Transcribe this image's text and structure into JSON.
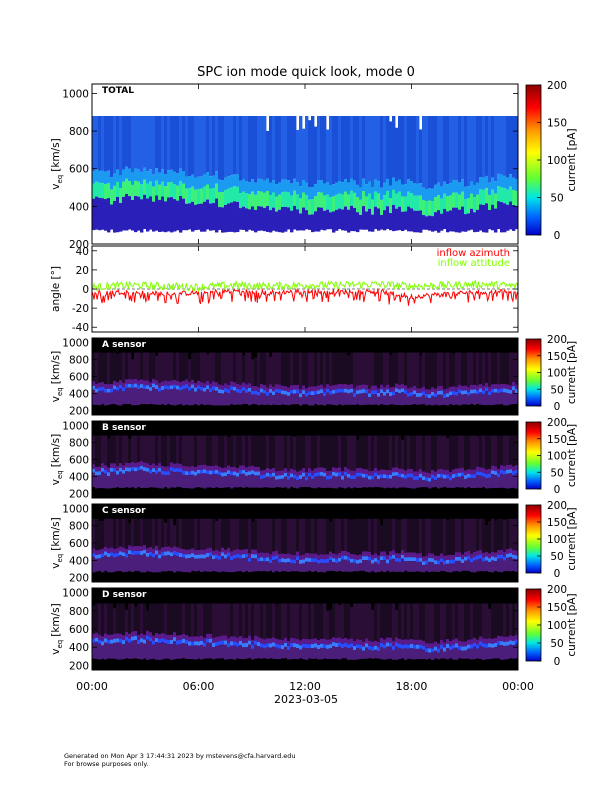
{
  "title": "SPC ion mode quick look, mode 0",
  "footer": {
    "line1": "Generated on Mon Apr  3 17:44:31 2023 by mstevens@cfa.harvard.edu",
    "line2": "For browse purposes only."
  },
  "time_axis": {
    "ticks": [
      "00:00",
      "06:00",
      "12:00",
      "18:00",
      "00:00"
    ],
    "date_label": "2023-03-05",
    "range_hours": [
      0,
      24
    ]
  },
  "colors": {
    "azimuth": "#ff0000",
    "attitude": "#80ff00"
  },
  "chart_data": [
    {
      "id": "total",
      "type": "heatmap",
      "panel_label": "TOTAL",
      "ylabel_main": "v",
      "ylabel_sub": "eq",
      "ylabel_unit": "[km/s]",
      "ylim": [
        200,
        1050
      ],
      "yticks": [
        200,
        400,
        600,
        800,
        1000
      ],
      "colorbar": {
        "label": "current [pA]",
        "range": [
          0,
          200
        ],
        "ticks": [
          0,
          50,
          100,
          150,
          200
        ]
      },
      "background": "#ffffff",
      "coverage_kms": [
        280,
        880
      ],
      "peak_speed_kms": [
        {
          "t": 0,
          "v": 460
        },
        {
          "t": 1,
          "v": 450
        },
        {
          "t": 2,
          "v": 470
        },
        {
          "t": 3,
          "v": 480
        },
        {
          "t": 4,
          "v": 460
        },
        {
          "t": 5,
          "v": 470
        },
        {
          "t": 6,
          "v": 450
        },
        {
          "t": 8,
          "v": 440
        },
        {
          "t": 10,
          "v": 410
        },
        {
          "t": 12,
          "v": 400
        },
        {
          "t": 14,
          "v": 410
        },
        {
          "t": 16,
          "v": 400
        },
        {
          "t": 17.5,
          "v": 420
        },
        {
          "t": 18,
          "v": 400
        },
        {
          "t": 19,
          "v": 380
        },
        {
          "t": 20,
          "v": 390
        },
        {
          "t": 22,
          "v": 420
        },
        {
          "t": 23,
          "v": 430
        },
        {
          "t": 24,
          "v": 440
        }
      ]
    },
    {
      "id": "angles",
      "type": "line",
      "ylabel": "angle [°]",
      "ylim": [
        -45,
        45
      ],
      "yticks": [
        -40,
        -20,
        0,
        20,
        40
      ],
      "series": [
        {
          "name": "inflow azimuth",
          "color": "#ff0000",
          "values": [
            {
              "t": 0,
              "y": -4
            },
            {
              "t": 2,
              "y": -3
            },
            {
              "t": 4,
              "y": -5
            },
            {
              "t": 6,
              "y": -4
            },
            {
              "t": 8,
              "y": -2
            },
            {
              "t": 10,
              "y": -4
            },
            {
              "t": 12,
              "y": -2
            },
            {
              "t": 14,
              "y": -3
            },
            {
              "t": 16,
              "y": -2
            },
            {
              "t": 18,
              "y": -8
            },
            {
              "t": 20,
              "y": -5
            },
            {
              "t": 22,
              "y": -3
            },
            {
              "t": 24,
              "y": -2
            }
          ]
        },
        {
          "name": "inflow attitude",
          "color": "#80ff00",
          "values": [
            {
              "t": 0,
              "y": 2
            },
            {
              "t": 2,
              "y": 4
            },
            {
              "t": 4,
              "y": 3
            },
            {
              "t": 6,
              "y": 2
            },
            {
              "t": 8,
              "y": 4
            },
            {
              "t": 10,
              "y": 3
            },
            {
              "t": 12,
              "y": 4
            },
            {
              "t": 14,
              "y": 4
            },
            {
              "t": 16,
              "y": 5
            },
            {
              "t": 18,
              "y": 3
            },
            {
              "t": 20,
              "y": 4
            },
            {
              "t": 22,
              "y": 5
            },
            {
              "t": 24,
              "y": 3
            }
          ]
        }
      ]
    },
    {
      "id": "a_sensor",
      "type": "heatmap",
      "panel_label": "A sensor",
      "ylabel_main": "v",
      "ylabel_sub": "eq",
      "ylabel_unit": "[km/s]",
      "ylim": [
        150,
        1050
      ],
      "yticks": [
        200,
        400,
        600,
        800,
        1000
      ],
      "colorbar": {
        "label": "current [pA]",
        "range": [
          0,
          200
        ],
        "ticks": [
          0,
          50,
          100,
          150,
          200
        ]
      },
      "background": "#000000",
      "coverage_kms": [
        280,
        880
      ]
    },
    {
      "id": "b_sensor",
      "type": "heatmap",
      "panel_label": "B sensor",
      "ylabel_main": "v",
      "ylabel_sub": "eq",
      "ylabel_unit": "[km/s]",
      "ylim": [
        150,
        1050
      ],
      "yticks": [
        200,
        400,
        600,
        800,
        1000
      ],
      "colorbar": {
        "label": "current [pA]",
        "range": [
          0,
          200
        ],
        "ticks": [
          0,
          50,
          100,
          150,
          200
        ]
      },
      "background": "#000000",
      "coverage_kms": [
        280,
        880
      ]
    },
    {
      "id": "c_sensor",
      "type": "heatmap",
      "panel_label": "C sensor",
      "ylabel_main": "v",
      "ylabel_sub": "eq",
      "ylabel_unit": "[km/s]",
      "ylim": [
        150,
        1050
      ],
      "yticks": [
        200,
        400,
        600,
        800,
        1000
      ],
      "colorbar": {
        "label": "current [pA]",
        "range": [
          0,
          200
        ],
        "ticks": [
          0,
          50,
          100,
          150,
          200
        ]
      },
      "background": "#000000",
      "coverage_kms": [
        280,
        880
      ]
    },
    {
      "id": "d_sensor",
      "type": "heatmap",
      "panel_label": "D sensor",
      "ylabel_main": "v",
      "ylabel_sub": "eq",
      "ylabel_unit": "[km/s]",
      "ylim": [
        150,
        1050
      ],
      "yticks": [
        200,
        400,
        600,
        800,
        1000
      ],
      "colorbar": {
        "label": "current [pA]",
        "range": [
          0,
          200
        ],
        "ticks": [
          0,
          50,
          100,
          150,
          200
        ]
      },
      "background": "#000000",
      "coverage_kms": [
        280,
        880
      ]
    }
  ]
}
